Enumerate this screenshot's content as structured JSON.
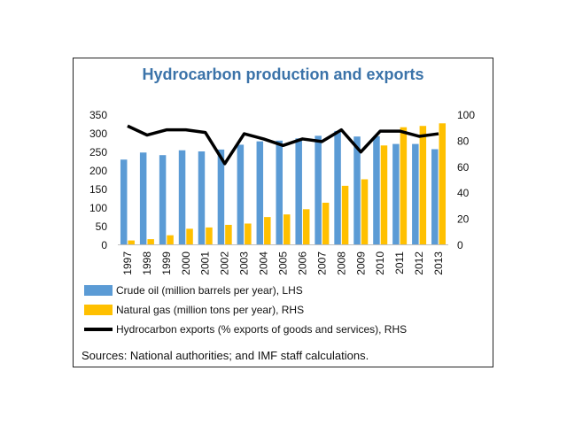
{
  "chart_data": {
    "type": "bar",
    "title": "Hydrocarbon production and exports",
    "categories": [
      "1997",
      "1998",
      "1999",
      "2000",
      "2001",
      "2002",
      "2003",
      "2004",
      "2005",
      "2006",
      "2007",
      "2008",
      "2009",
      "2010",
      "2011",
      "2012",
      "2013"
    ],
    "series": [
      {
        "name": "Crude oil (million barrels per year), LHS",
        "type": "bar",
        "axis": "left",
        "color": "#5b9bd5",
        "values": [
          228,
          247,
          240,
          253,
          250,
          255,
          268,
          277,
          279,
          285,
          292,
          305,
          290,
          291,
          270,
          270,
          256
        ]
      },
      {
        "name": "Natural gas (million tons per year), RHS",
        "type": "bar",
        "axis": "right",
        "color": "#ffc000",
        "values": [
          3,
          4,
          7,
          12,
          13,
          15,
          16,
          21,
          23,
          27,
          32,
          45,
          50,
          76,
          90,
          91,
          93
        ]
      },
      {
        "name": "Hydrocarbon exports (% exports of goods and services), RHS",
        "type": "line",
        "axis": "right",
        "color": "#000000",
        "values": [
          91,
          84,
          88,
          88,
          86,
          62,
          85,
          81,
          76,
          81,
          79,
          88,
          71,
          87,
          87,
          83,
          85
        ]
      }
    ],
    "left_axis": {
      "ylim": [
        0,
        350
      ],
      "ticks": [
        "0",
        "50",
        "100",
        "150",
        "200",
        "250",
        "300",
        "350"
      ]
    },
    "right_axis": {
      "ylim": [
        0,
        100
      ],
      "ticks": [
        "0",
        "20",
        "40",
        "60",
        "80",
        "100"
      ]
    },
    "legend_position": "bottom",
    "grid": false
  },
  "source": "Sources: National authorities; and IMF staff calculations."
}
